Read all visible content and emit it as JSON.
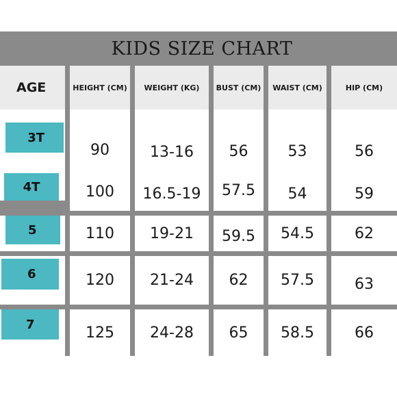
{
  "title": "KIDS SIZE CHART",
  "headers": {
    "age": "AGE",
    "height": "HEIGHT (CM)",
    "weight": "WEIGHT (KG)",
    "bust": "BUST (CM)",
    "waist": "WAIST (CM)",
    "hip": "HIP (CM)"
  },
  "rows": [
    {
      "age": "3T",
      "height": "90",
      "weight": "13-16",
      "bust": "56",
      "waist": "53",
      "hip": "56"
    },
    {
      "age": "4T",
      "height": "100",
      "weight": "16.5-19",
      "bust": "57.5",
      "waist": "54",
      "hip": "59"
    },
    {
      "age": "5",
      "height": "110",
      "weight": "19-21",
      "bust": "59.5",
      "waist": "54.5",
      "hip": "62"
    },
    {
      "age": "6",
      "height": "120",
      "weight": "21-24",
      "bust": "62",
      "waist": "57.5",
      "hip": "63"
    },
    {
      "age": "7",
      "height": "125",
      "weight": "24-28",
      "bust": "65",
      "waist": "58.5",
      "hip": "66"
    }
  ],
  "colors": {
    "header_band": "#8a8a8a",
    "age_tag": "#4bb8c2"
  }
}
